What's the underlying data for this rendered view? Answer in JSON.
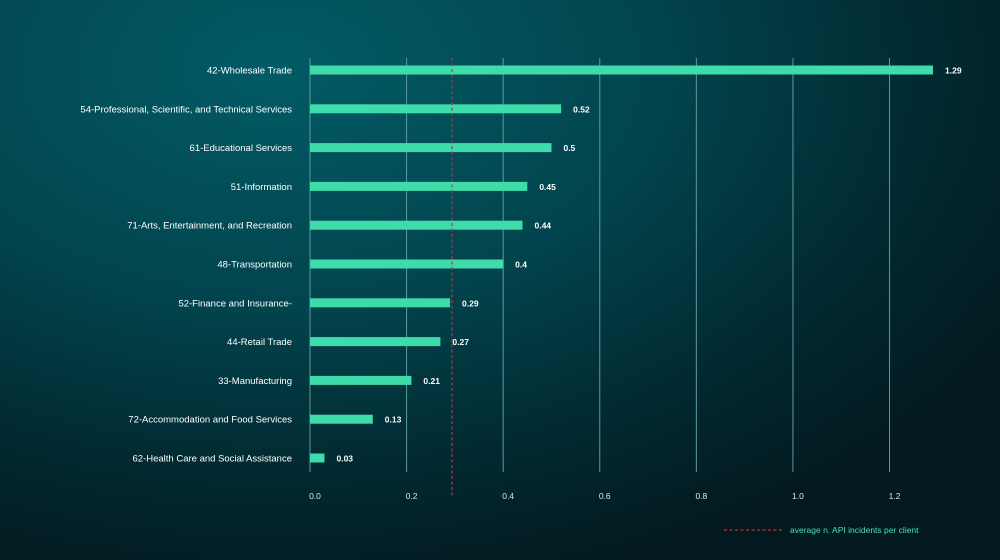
{
  "chart_data": {
    "type": "bar",
    "orientation": "horizontal",
    "categories": [
      "42-Wholesale Trade",
      "54-Professional, Scientific, and Technical Services",
      "61-Educational Services",
      "51-Information",
      "71-Arts, Entertainment, and Recreation",
      "48-Transportation",
      "52-Finance and Insurance-",
      "44-Retail Trade",
      "33-Manufacturing",
      "72-Accommodation and Food Services",
      "62-Health Care and Social Assistance"
    ],
    "values": [
      1.29,
      0.52,
      0.5,
      0.45,
      0.44,
      0.4,
      0.29,
      0.27,
      0.21,
      0.13,
      0.03
    ],
    "value_labels": [
      "1.29",
      "0.52",
      "0.5",
      "0.45",
      "0.44",
      "0.4",
      "0.29",
      "0.27",
      "0.21",
      "0.13",
      "0.03"
    ],
    "xlim": [
      0,
      1.32
    ],
    "xticks": [
      0,
      0.2,
      0.4,
      0.6,
      0.8,
      1.0,
      1.2
    ],
    "xtick_labels": [
      "0.0",
      "0.2",
      "0.4",
      "0.6",
      "0.8",
      "1.0",
      "1.2"
    ],
    "reference_line": {
      "value": 0.3,
      "style": "dashed",
      "label": "average n. API incidents per client"
    },
    "grid": "vertical",
    "legend_position": "bottom-right",
    "title": "",
    "xlabel": "",
    "ylabel": "",
    "colors": {
      "bar": "#3fdcab",
      "grid": "#5e9a9e",
      "reference_line": "#d8282c",
      "label_text": "#ffffff",
      "legend_text": "#4fe0b4"
    }
  }
}
